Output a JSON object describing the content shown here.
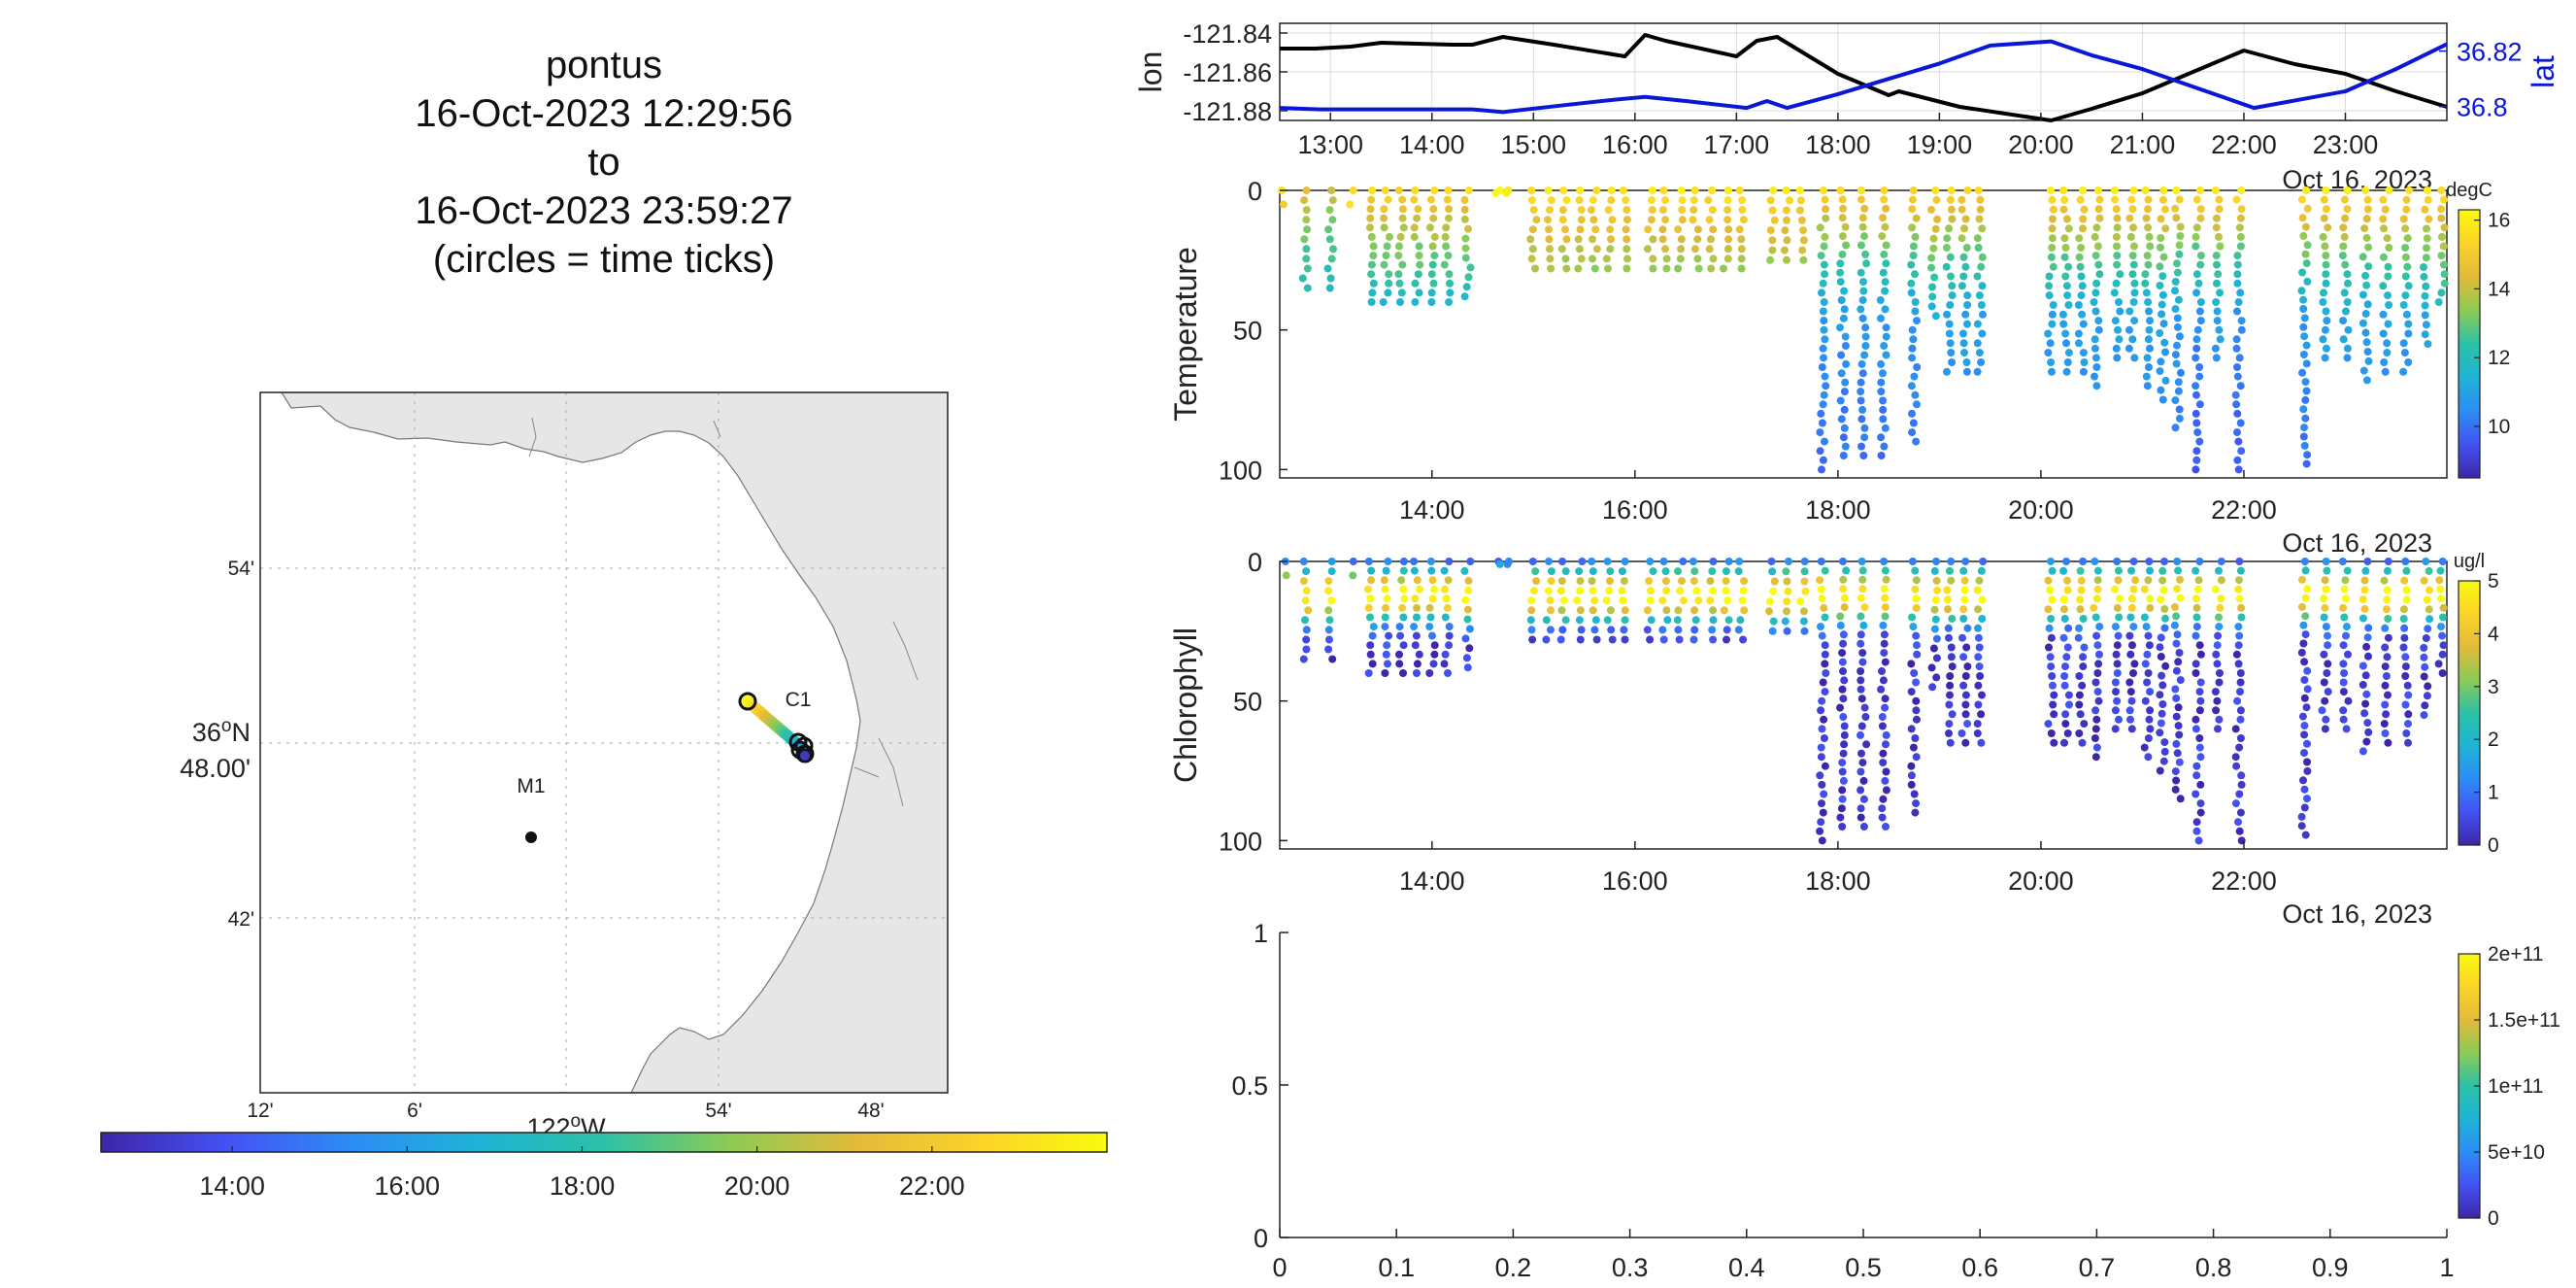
{
  "title": {
    "lines": [
      "pontus",
      "16-Oct-2023 12:29:56",
      "to",
      "16-Oct-2023 23:59:27",
      "(circles = time ticks)"
    ]
  },
  "colors": {
    "lon_line": "#000000",
    "lat_line": "#0b17d6",
    "land": "#e6e6e6",
    "colormap": [
      "#3e26a8",
      "#4352f3",
      "#2d8df5",
      "#1fb3d6",
      "#2cc1a6",
      "#8ccb55",
      "#e3ba3a",
      "#fbd329",
      "#f9fb0e"
    ]
  },
  "map": {
    "lat_tick_labels": [
      "54'",
      "36°N\n48.00'",
      "42'"
    ],
    "lon_tick_labels": [
      "12'",
      "6'",
      "122°W",
      "54'",
      "48'"
    ],
    "lon_tick_values": [
      12,
      6,
      0,
      54,
      48
    ],
    "station_labels": [
      "M1",
      "C1"
    ],
    "colorbar_ticks": [
      "14:00",
      "16:00",
      "18:00",
      "20:00",
      "22:00"
    ],
    "colorbar_tick_hours": [
      14,
      16,
      18,
      20,
      22
    ],
    "colorbar_range_hours": [
      12.5,
      24
    ]
  },
  "chart_data": [
    {
      "type": "line",
      "name": "lon-lat timeseries",
      "ylabel_left": "lon",
      "ylabel_right": "lat",
      "x_ticks": [
        "13:00",
        "14:00",
        "15:00",
        "16:00",
        "17:00",
        "18:00",
        "19:00",
        "20:00",
        "21:00",
        "22:00",
        "23:00"
      ],
      "x_tick_hours": [
        13,
        14,
        15,
        16,
        17,
        18,
        19,
        20,
        21,
        22,
        23
      ],
      "xlim_hours": [
        12.5,
        24
      ],
      "y_left_ticks": [
        "-121.84",
        "-121.86",
        "-121.88"
      ],
      "y_left_values": [
        -121.84,
        -121.86,
        -121.88
      ],
      "ylim_left": [
        -121.885,
        -121.835
      ],
      "y_right_ticks": [
        "36.82",
        "36.8"
      ],
      "y_right_values": [
        36.82,
        36.8
      ],
      "ylim_right": [
        36.795,
        36.83
      ],
      "date_label": "Oct 16, 2023",
      "series": [
        {
          "name": "lon",
          "x": [
            12.5,
            12.85,
            13.2,
            13.5,
            14.2,
            14.4,
            14.7,
            15.2,
            15.9,
            16.1,
            16.3,
            17.0,
            17.2,
            17.4,
            18.0,
            18.5,
            18.6,
            19.2,
            20.1,
            20.5,
            21.0,
            22.0,
            22.5,
            23.0,
            23.5,
            24.0
          ],
          "y": [
            -121.848,
            -121.848,
            -121.847,
            -121.845,
            -121.846,
            -121.846,
            -121.842,
            -121.846,
            -121.852,
            -121.841,
            -121.844,
            -121.852,
            -121.844,
            -121.842,
            -121.861,
            -121.872,
            -121.87,
            -121.878,
            -121.885,
            -121.879,
            -121.871,
            -121.849,
            -121.856,
            -121.861,
            -121.87,
            -121.878
          ]
        },
        {
          "name": "lat",
          "x": [
            12.5,
            12.9,
            13.5,
            14.4,
            14.7,
            15.3,
            15.8,
            16.1,
            16.5,
            17.1,
            17.3,
            17.5,
            18.0,
            19.0,
            19.5,
            20.1,
            20.5,
            21.0,
            22.1,
            22.7,
            23.0,
            23.5,
            24.0
          ],
          "y": [
            36.7995,
            36.799,
            36.799,
            36.799,
            36.798,
            36.8005,
            36.8025,
            36.8035,
            36.802,
            36.7995,
            36.802,
            36.7995,
            36.8045,
            36.8155,
            36.822,
            36.8235,
            36.8185,
            36.8135,
            36.7995,
            36.8035,
            36.8055,
            36.8135,
            36.8225
          ]
        }
      ]
    },
    {
      "type": "scatter",
      "name": "Temperature section",
      "ylabel": "Temperature",
      "x_ticks": [
        "14:00",
        "16:00",
        "18:00",
        "20:00",
        "22:00"
      ],
      "x_tick_hours": [
        14,
        16,
        18,
        20,
        22
      ],
      "xlim_hours": [
        12.5,
        24
      ],
      "y_ticks": [
        "0",
        "50",
        "100"
      ],
      "y_tick_values": [
        0,
        50,
        100
      ],
      "ylim": [
        0,
        103
      ],
      "colorbar_units": "degC",
      "colorbar_ticks": [
        "16",
        "14",
        "12",
        "10"
      ],
      "colorbar_tick_values": [
        16,
        14,
        12,
        10
      ],
      "clim": [
        8.5,
        16.3
      ],
      "date_label": "Oct 16, 2023",
      "casts": [
        {
          "t": 12.55,
          "max_depth": 5,
          "t_surface": 15.5,
          "t_deep": 14.2
        },
        {
          "t": 12.75,
          "max_depth": 35,
          "t_surface": 14.5,
          "t_deep": 11.5
        },
        {
          "t": 13.0,
          "max_depth": 35,
          "t_surface": 14.0,
          "t_deep": 11.5
        },
        {
          "t": 13.2,
          "max_depth": 5,
          "t_surface": 15.8,
          "t_deep": 15.8
        },
        {
          "t": 13.4,
          "max_depth": 40,
          "t_surface": 15.5,
          "t_deep": 11.3
        },
        {
          "t": 13.55,
          "max_depth": 40,
          "t_surface": 15.5,
          "t_deep": 11.3
        },
        {
          "t": 13.7,
          "max_depth": 40,
          "t_surface": 15.5,
          "t_deep": 11.3
        },
        {
          "t": 13.85,
          "max_depth": 40,
          "t_surface": 15.5,
          "t_deep": 11.3
        },
        {
          "t": 14.0,
          "max_depth": 40,
          "t_surface": 15.5,
          "t_deep": 11.3
        },
        {
          "t": 14.15,
          "max_depth": 40,
          "t_surface": 15.5,
          "t_deep": 11.3
        },
        {
          "t": 14.35,
          "max_depth": 38,
          "t_surface": 15.5,
          "t_deep": 11.3
        },
        {
          "t": 14.65,
          "max_depth": 1,
          "t_surface": 16.0,
          "t_deep": 16.0
        },
        {
          "t": 14.75,
          "max_depth": 1,
          "t_surface": 16.0,
          "t_deep": 16.0
        },
        {
          "t": 15.0,
          "max_depth": 28,
          "t_surface": 15.8,
          "t_deep": 12.5
        },
        {
          "t": 15.15,
          "max_depth": 28,
          "t_surface": 15.8,
          "t_deep": 12.5
        },
        {
          "t": 15.3,
          "max_depth": 28,
          "t_surface": 15.8,
          "t_deep": 12.5
        },
        {
          "t": 15.45,
          "max_depth": 28,
          "t_surface": 15.8,
          "t_deep": 12.5
        },
        {
          "t": 15.6,
          "max_depth": 28,
          "t_surface": 15.8,
          "t_deep": 12.5
        },
        {
          "t": 15.75,
          "max_depth": 28,
          "t_surface": 15.8,
          "t_deep": 12.5
        },
        {
          "t": 15.9,
          "max_depth": 28,
          "t_surface": 15.8,
          "t_deep": 12.5
        },
        {
          "t": 16.15,
          "max_depth": 28,
          "t_surface": 15.8,
          "t_deep": 12.5
        },
        {
          "t": 16.3,
          "max_depth": 28,
          "t_surface": 15.8,
          "t_deep": 12.5
        },
        {
          "t": 16.45,
          "max_depth": 28,
          "t_surface": 15.8,
          "t_deep": 12.5
        },
        {
          "t": 16.6,
          "max_depth": 28,
          "t_surface": 15.8,
          "t_deep": 12.5
        },
        {
          "t": 16.75,
          "max_depth": 28,
          "t_surface": 15.8,
          "t_deep": 12.5
        },
        {
          "t": 16.9,
          "max_depth": 28,
          "t_surface": 15.8,
          "t_deep": 12.5
        },
        {
          "t": 17.05,
          "max_depth": 28,
          "t_surface": 15.8,
          "t_deep": 12.5
        },
        {
          "t": 17.35,
          "max_depth": 25,
          "t_surface": 15.8,
          "t_deep": 12.5
        },
        {
          "t": 17.5,
          "max_depth": 25,
          "t_surface": 15.8,
          "t_deep": 12.5
        },
        {
          "t": 17.65,
          "max_depth": 25,
          "t_surface": 15.8,
          "t_deep": 12.5
        },
        {
          "t": 17.85,
          "max_depth": 100,
          "t_surface": 15.5,
          "t_deep": 10.8
        },
        {
          "t": 18.05,
          "max_depth": 95,
          "t_surface": 15.5,
          "t_deep": 10.8
        },
        {
          "t": 18.25,
          "max_depth": 95,
          "t_surface": 15.5,
          "t_deep": 10.8
        },
        {
          "t": 18.45,
          "max_depth": 95,
          "t_surface": 15.5,
          "t_deep": 10.8
        },
        {
          "t": 18.75,
          "max_depth": 90,
          "t_surface": 15.5,
          "t_deep": 10.8
        },
        {
          "t": 18.95,
          "max_depth": 45,
          "t_surface": 15.5,
          "t_deep": 11.5
        },
        {
          "t": 19.1,
          "max_depth": 65,
          "t_surface": 15.5,
          "t_deep": 11.0
        },
        {
          "t": 19.25,
          "max_depth": 65,
          "t_surface": 15.5,
          "t_deep": 11.0
        },
        {
          "t": 19.4,
          "max_depth": 65,
          "t_surface": 15.5,
          "t_deep": 11.0
        },
        {
          "t": 20.1,
          "max_depth": 65,
          "t_surface": 15.8,
          "t_deep": 11.0
        },
        {
          "t": 20.25,
          "max_depth": 65,
          "t_surface": 15.8,
          "t_deep": 11.0
        },
        {
          "t": 20.4,
          "max_depth": 65,
          "t_surface": 15.8,
          "t_deep": 11.0
        },
        {
          "t": 20.55,
          "max_depth": 70,
          "t_surface": 15.8,
          "t_deep": 11.0
        },
        {
          "t": 20.75,
          "max_depth": 60,
          "t_surface": 15.8,
          "t_deep": 11.0
        },
        {
          "t": 20.9,
          "max_depth": 60,
          "t_surface": 15.8,
          "t_deep": 11.0
        },
        {
          "t": 21.05,
          "max_depth": 70,
          "t_surface": 15.8,
          "t_deep": 11.0
        },
        {
          "t": 21.2,
          "max_depth": 75,
          "t_surface": 15.8,
          "t_deep": 11.0
        },
        {
          "t": 21.35,
          "max_depth": 85,
          "t_surface": 15.8,
          "t_deep": 10.8
        },
        {
          "t": 21.55,
          "max_depth": 100,
          "t_surface": 15.8,
          "t_deep": 10.5
        },
        {
          "t": 21.75,
          "max_depth": 60,
          "t_surface": 15.8,
          "t_deep": 11.0
        },
        {
          "t": 21.95,
          "max_depth": 100,
          "t_surface": 15.8,
          "t_deep": 10.5
        },
        {
          "t": 22.6,
          "max_depth": 98,
          "t_surface": 15.8,
          "t_deep": 10.8
        },
        {
          "t": 22.8,
          "max_depth": 60,
          "t_surface": 15.8,
          "t_deep": 11.0
        },
        {
          "t": 23.0,
          "max_depth": 60,
          "t_surface": 15.8,
          "t_deep": 11.0
        },
        {
          "t": 23.2,
          "max_depth": 68,
          "t_surface": 15.8,
          "t_deep": 11.0
        },
        {
          "t": 23.4,
          "max_depth": 65,
          "t_surface": 15.8,
          "t_deep": 11.0
        },
        {
          "t": 23.6,
          "max_depth": 65,
          "t_surface": 15.8,
          "t_deep": 11.0
        },
        {
          "t": 23.8,
          "max_depth": 55,
          "t_surface": 15.8,
          "t_deep": 11.0
        },
        {
          "t": 23.95,
          "max_depth": 40,
          "t_surface": 15.8,
          "t_deep": 11.5
        }
      ]
    },
    {
      "type": "scatter",
      "name": "Chlorophyll section",
      "ylabel": "Chlorophyll",
      "x_ticks": [
        "14:00",
        "16:00",
        "18:00",
        "20:00",
        "22:00"
      ],
      "x_tick_hours": [
        14,
        16,
        18,
        20,
        22
      ],
      "xlim_hours": [
        12.5,
        24
      ],
      "y_ticks": [
        "0",
        "50",
        "100"
      ],
      "y_tick_values": [
        0,
        50,
        100
      ],
      "ylim": [
        0,
        103
      ],
      "colorbar_units": "ug/l",
      "colorbar_ticks": [
        "5",
        "4",
        "3",
        "2",
        "1",
        "0"
      ],
      "colorbar_tick_values": [
        5,
        4,
        3,
        2,
        1,
        0
      ],
      "clim": [
        0,
        5
      ],
      "date_label": "Oct 16, 2023",
      "max_chl_depth": 12,
      "casts_ref": "same profile times and depths as Temperature section"
    },
    {
      "type": "scatter",
      "name": "empty bottom panel",
      "x_ticks": [
        "0",
        "0.1",
        "0.2",
        "0.3",
        "0.4",
        "0.5",
        "0.6",
        "0.7",
        "0.8",
        "0.9",
        "1"
      ],
      "x_tick_values": [
        0,
        0.1,
        0.2,
        0.3,
        0.4,
        0.5,
        0.6,
        0.7,
        0.8,
        0.9,
        1
      ],
      "xlim": [
        0,
        1
      ],
      "y_ticks": [
        "1",
        "0.5",
        "0"
      ],
      "y_tick_values": [
        1,
        0.5,
        0
      ],
      "ylim": [
        0,
        1
      ],
      "colorbar_ticks": [
        "2e+11",
        "1.5e+11",
        "1e+11",
        "5e+10",
        "0"
      ],
      "colorbar_tick_values": [
        200000000000.0,
        150000000000.0,
        100000000000.0,
        50000000000.0,
        0
      ],
      "clim": [
        0,
        200000000000.0
      ]
    }
  ]
}
